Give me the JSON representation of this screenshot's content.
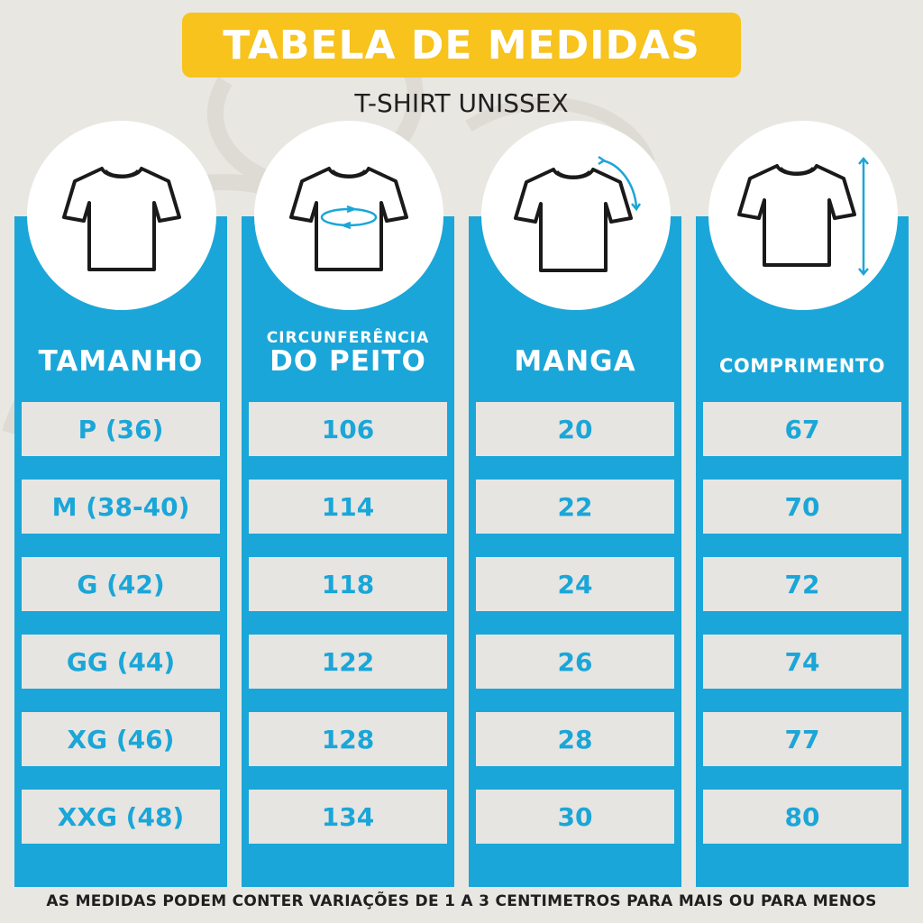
{
  "title": "TABELA DE MEDIDAS",
  "subtitle": "T-SHIRT UNISSEX",
  "colors": {
    "accent": "#1aa6d8",
    "banner": "#f7c31c",
    "background": "#e9e7e2",
    "cell": "#e6e5e2"
  },
  "columns": [
    {
      "header": "TAMANHO",
      "icon": "tshirt-icon",
      "values": [
        "P (36)",
        "M (38-40)",
        "G (42)",
        "GG (44)",
        "XG (46)",
        "XXG (48)"
      ]
    },
    {
      "header_line1": "CIRCUNFERÊNCIA",
      "header_line2": "DO PEITO",
      "icon": "chest-measure-icon",
      "values": [
        "106",
        "114",
        "118",
        "122",
        "128",
        "134"
      ]
    },
    {
      "header": "MANGA",
      "icon": "sleeve-measure-icon",
      "values": [
        "20",
        "22",
        "24",
        "26",
        "28",
        "30"
      ]
    },
    {
      "header": "COMPRIMENTO",
      "icon": "length-measure-icon",
      "values": [
        "67",
        "70",
        "72",
        "74",
        "77",
        "80"
      ]
    }
  ],
  "footer": "AS MEDIDAS PODEM CONTER VARIAÇÕES DE 1 A 3 CENTIMETROS PARA MAIS OU PARA MENOS"
}
